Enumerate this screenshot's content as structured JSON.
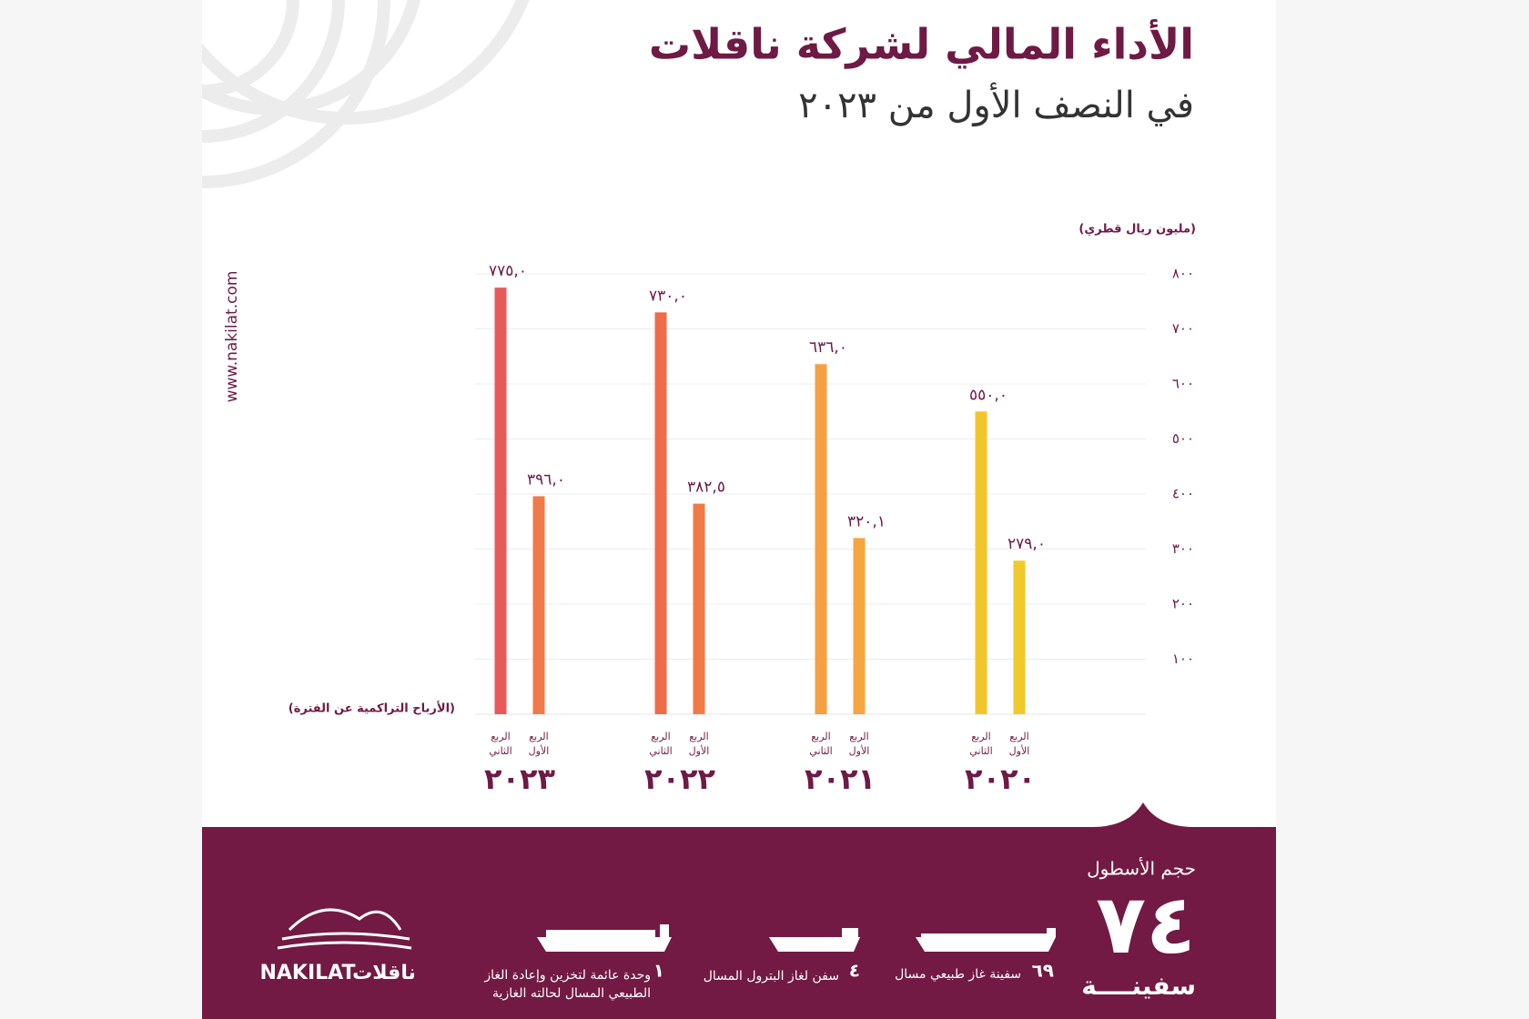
{
  "chart_data": {
    "type": "bar",
    "title": "الأداء المالي لشركة ناقلات",
    "subtitle": "في النصف الأول من ٢٠٢٣",
    "y_label": "(مليون ريال قطري)",
    "x_label": "(الأرباح التراكمية عن الفترة)",
    "categories": [
      "٢٠٢٣",
      "٢٠٢٢",
      "٢٠٢١",
      "٢٠٢٠"
    ],
    "series": [
      {
        "name": "الربع الثاني",
        "colors": [
          "#e85a58",
          "#ef6c48",
          "#f5a043",
          "#f2c62b"
        ],
        "values": [
          775.0,
          730.0,
          636.0,
          550.0
        ],
        "value_labels": [
          "٧٧٥,٠",
          "٧٣٠,٠",
          "٦٣٦,٠",
          "٥٥٠,٠"
        ]
      },
      {
        "name": "الربع الأول",
        "colors": [
          "#f07a48",
          "#f27a45",
          "#f5a640",
          "#f0ca2a"
        ],
        "values": [
          396.0,
          382.5,
          320.1,
          279.0
        ],
        "value_labels": [
          "٣٩٦,٠",
          "٣٨٢,٥",
          "٣٢٠,١",
          "٢٧٩,٠"
        ]
      }
    ],
    "ylim": [
      0,
      800
    ],
    "yticks": [
      {
        "value": 100,
        "label": "١٠٠"
      },
      {
        "value": 200,
        "label": "٢٠٠"
      },
      {
        "value": 300,
        "label": "٣٠٠"
      },
      {
        "value": 400,
        "label": "٤٠٠"
      },
      {
        "value": 500,
        "label": "٥٠٠"
      },
      {
        "value": 600,
        "label": "٦٠٠"
      },
      {
        "value": 700,
        "label": "٧٠٠"
      },
      {
        "value": 800,
        "label": "٨٠٠"
      }
    ],
    "grid": true
  },
  "website": "www.nakilat.com",
  "footer": {
    "heading": "حجم الأسطول",
    "total": "٧٤",
    "unit": "سفينــــة",
    "items": [
      {
        "count": "٦٩",
        "text": "سفينة غاز طبيعي مسال"
      },
      {
        "count": "٤",
        "text": "سفن لغاز البترول المسال"
      },
      {
        "count": "١",
        "text": "وحدة عائمة لتخزين وإعادة الغاز",
        "text2": "الطبيعي المسال لحالته الغازية"
      }
    ],
    "logo_en": "NAKILAT",
    "logo_ar": "ناقلات"
  }
}
